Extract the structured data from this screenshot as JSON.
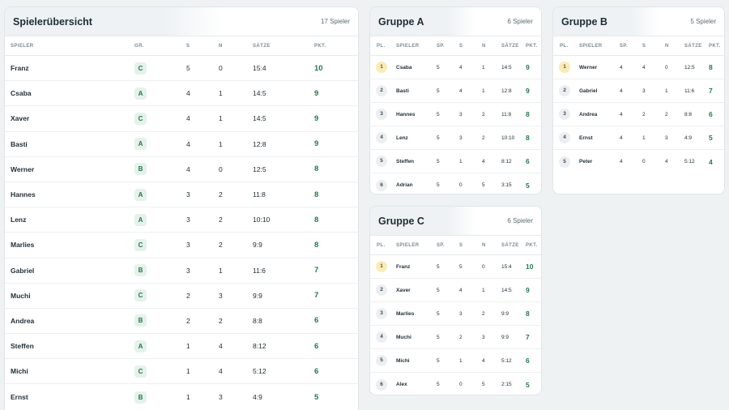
{
  "overview": {
    "title": "Spielerübersicht",
    "count": "17 Spieler",
    "columns": [
      "SPIELER",
      "GR.",
      "S",
      "N",
      "SÄTZE",
      "PKT."
    ],
    "rows": [
      {
        "name": "Franz",
        "group": "C",
        "s": "5",
        "n": "0",
        "saetze": "15:4",
        "pkt": "10"
      },
      {
        "name": "Csaba",
        "group": "A",
        "s": "4",
        "n": "1",
        "saetze": "14:5",
        "pkt": "9"
      },
      {
        "name": "Xaver",
        "group": "C",
        "s": "4",
        "n": "1",
        "saetze": "14:5",
        "pkt": "9"
      },
      {
        "name": "Basti",
        "group": "A",
        "s": "4",
        "n": "1",
        "saetze": "12:8",
        "pkt": "9"
      },
      {
        "name": "Werner",
        "group": "B",
        "s": "4",
        "n": "0",
        "saetze": "12:5",
        "pkt": "8"
      },
      {
        "name": "Hannes",
        "group": "A",
        "s": "3",
        "n": "2",
        "saetze": "11:8",
        "pkt": "8"
      },
      {
        "name": "Lenz",
        "group": "A",
        "s": "3",
        "n": "2",
        "saetze": "10:10",
        "pkt": "8"
      },
      {
        "name": "Marlies",
        "group": "C",
        "s": "3",
        "n": "2",
        "saetze": "9:9",
        "pkt": "8"
      },
      {
        "name": "Gabriel",
        "group": "B",
        "s": "3",
        "n": "1",
        "saetze": "11:6",
        "pkt": "7"
      },
      {
        "name": "Muchi",
        "group": "C",
        "s": "2",
        "n": "3",
        "saetze": "9:9",
        "pkt": "7"
      },
      {
        "name": "Andrea",
        "group": "B",
        "s": "2",
        "n": "2",
        "saetze": "8:8",
        "pkt": "6"
      },
      {
        "name": "Steffen",
        "group": "A",
        "s": "1",
        "n": "4",
        "saetze": "8:12",
        "pkt": "6"
      },
      {
        "name": "Michi",
        "group": "C",
        "s": "1",
        "n": "4",
        "saetze": "5:12",
        "pkt": "6"
      },
      {
        "name": "Ernst",
        "group": "B",
        "s": "1",
        "n": "3",
        "saetze": "4:9",
        "pkt": "5"
      }
    ]
  },
  "group_columns": [
    "PL.",
    "SPIELER",
    "SP.",
    "S",
    "N",
    "SÄTZE",
    "PKT."
  ],
  "groups": [
    {
      "title": "Gruppe A",
      "count": "6 Spieler",
      "rows": [
        {
          "pl": "1",
          "name": "Csaba",
          "sp": "5",
          "s": "4",
          "n": "1",
          "saetze": "14:5",
          "pkt": "9"
        },
        {
          "pl": "2",
          "name": "Basti",
          "sp": "5",
          "s": "4",
          "n": "1",
          "saetze": "12:8",
          "pkt": "9"
        },
        {
          "pl": "3",
          "name": "Hannes",
          "sp": "5",
          "s": "3",
          "n": "2",
          "saetze": "11:8",
          "pkt": "8"
        },
        {
          "pl": "4",
          "name": "Lenz",
          "sp": "5",
          "s": "3",
          "n": "2",
          "saetze": "10:10",
          "pkt": "8"
        },
        {
          "pl": "5",
          "name": "Steffen",
          "sp": "5",
          "s": "1",
          "n": "4",
          "saetze": "8:12",
          "pkt": "6"
        },
        {
          "pl": "6",
          "name": "Adrian",
          "sp": "5",
          "s": "0",
          "n": "5",
          "saetze": "3:15",
          "pkt": "5"
        }
      ]
    },
    {
      "title": "Gruppe B",
      "count": "5 Spieler",
      "rows": [
        {
          "pl": "1",
          "name": "Werner",
          "sp": "4",
          "s": "4",
          "n": "0",
          "saetze": "12:5",
          "pkt": "8"
        },
        {
          "pl": "2",
          "name": "Gabriel",
          "sp": "4",
          "s": "3",
          "n": "1",
          "saetze": "11:6",
          "pkt": "7"
        },
        {
          "pl": "3",
          "name": "Andrea",
          "sp": "4",
          "s": "2",
          "n": "2",
          "saetze": "8:8",
          "pkt": "6"
        },
        {
          "pl": "4",
          "name": "Ernst",
          "sp": "4",
          "s": "1",
          "n": "3",
          "saetze": "4:9",
          "pkt": "5"
        },
        {
          "pl": "5",
          "name": "Peter",
          "sp": "4",
          "s": "0",
          "n": "4",
          "saetze": "5:12",
          "pkt": "4"
        }
      ]
    },
    {
      "title": "Gruppe C",
      "count": "6 Spieler",
      "rows": [
        {
          "pl": "1",
          "name": "Franz",
          "sp": "5",
          "s": "5",
          "n": "0",
          "saetze": "15:4",
          "pkt": "10"
        },
        {
          "pl": "2",
          "name": "Xaver",
          "sp": "5",
          "s": "4",
          "n": "1",
          "saetze": "14:5",
          "pkt": "9"
        },
        {
          "pl": "3",
          "name": "Marlies",
          "sp": "5",
          "s": "3",
          "n": "2",
          "saetze": "9:9",
          "pkt": "8"
        },
        {
          "pl": "4",
          "name": "Muchi",
          "sp": "5",
          "s": "2",
          "n": "3",
          "saetze": "9:9",
          "pkt": "7"
        },
        {
          "pl": "5",
          "name": "Michi",
          "sp": "5",
          "s": "1",
          "n": "4",
          "saetze": "5:12",
          "pkt": "6"
        },
        {
          "pl": "6",
          "name": "Alex",
          "sp": "5",
          "s": "0",
          "n": "5",
          "saetze": "2:15",
          "pkt": "5"
        }
      ]
    }
  ],
  "colors": {
    "points": "#1f7a4d",
    "group_badge_bg": "#e4f2ea",
    "first_place_bg": "#fbebb7"
  }
}
